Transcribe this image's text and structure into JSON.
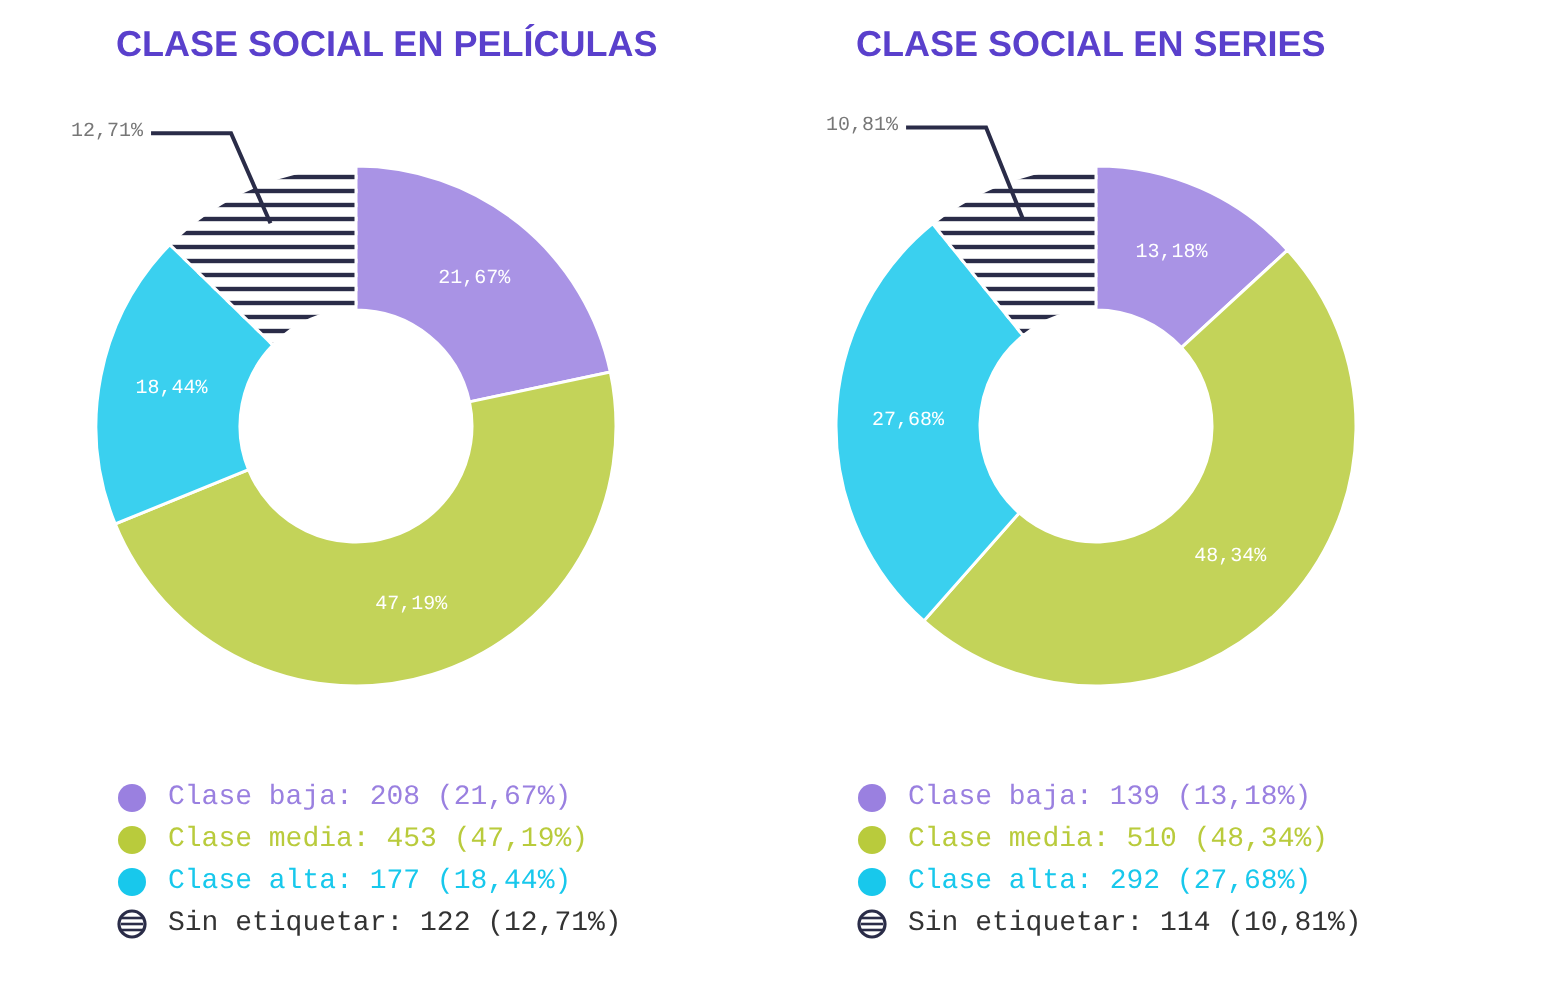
{
  "chart_data": [
    {
      "type": "donut",
      "title": "CLASE SOCIAL EN PELÍCULAS",
      "categories": [
        "Clase baja: 208 (21,67%)",
        "Clase media: 453 (47,19%)",
        "Clase alta: 177 (18,44%)",
        "Sin etiquetar: 122 (12,71%)"
      ],
      "values": [
        21.67,
        47.19,
        18.44,
        12.71
      ],
      "value_labels": [
        "21,67%",
        "47,19%",
        "18,44%",
        "12,71%"
      ],
      "colors": [
        "#9a80e0",
        "#b9cb3c",
        "#18c8ec",
        "#2a2c48"
      ],
      "legend": "bottom"
    },
    {
      "type": "donut",
      "title": "CLASE SOCIAL EN SERIES",
      "categories": [
        "Clase baja: 139 (13,18%)",
        "Clase media: 510 (48,34%)",
        "Clase alta: 292 (27,68%)",
        "Sin etiquetar: 114 (10,81%)"
      ],
      "values": [
        13.18,
        48.34,
        27.68,
        10.81
      ],
      "value_labels": [
        "13,18%",
        "48,34%",
        "27,68%",
        "10,81%"
      ],
      "colors": [
        "#9a80e0",
        "#b9cb3c",
        "#18c8ec",
        "#2a2c48"
      ],
      "legend": "bottom"
    }
  ]
}
